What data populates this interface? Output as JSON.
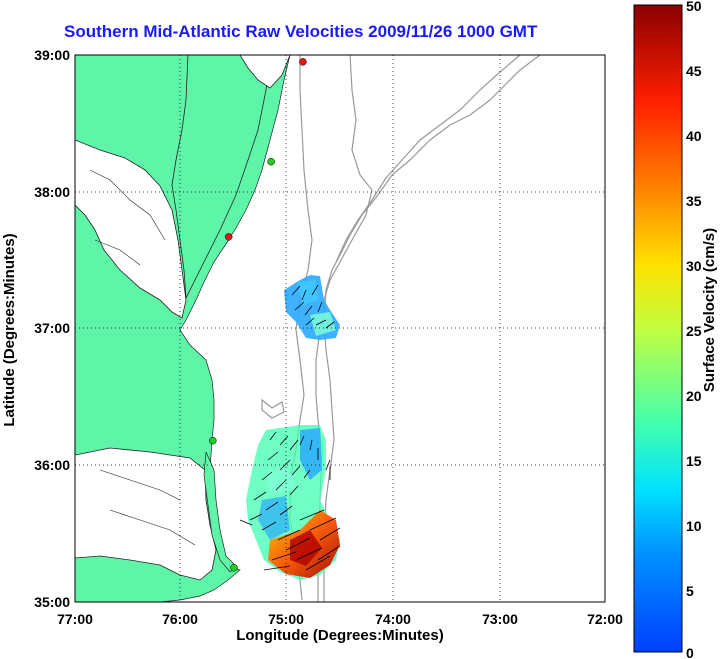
{
  "title": "Southern Mid-Atlantic Raw Velocities 2009/11/26 1000 GMT",
  "xaxis": {
    "label": "Longitude (Degrees:Minutes)",
    "ticks": [
      "77:00",
      "76:00",
      "75:00",
      "74:00",
      "73:00",
      "72:00"
    ]
  },
  "yaxis": {
    "label": "Latitude (Degrees:Minutes)",
    "ticks": [
      "39:00",
      "38:00",
      "37:00",
      "36:00",
      "35:00"
    ]
  },
  "colorbar": {
    "label": "Surface Velocity (cm/s)",
    "ticks": [
      "50",
      "45",
      "40",
      "35",
      "30",
      "25",
      "20",
      "15",
      "10",
      "5",
      "0"
    ],
    "min": 0,
    "max": 50
  },
  "colors": {
    "land": "#5ff5a8",
    "title": "#1a1aff",
    "grid": "#000000",
    "bathymetry": "#999999",
    "station_active": "#22cc22",
    "station_inactive": "#ee1111"
  },
  "stations": [
    {
      "lon": -74.85,
      "lat": 38.95,
      "status": "inactive"
    },
    {
      "lon": -75.15,
      "lat": 38.22,
      "status": "active"
    },
    {
      "lon": -75.55,
      "lat": 37.67,
      "status": "inactive"
    },
    {
      "lon": -75.7,
      "lat": 36.18,
      "status": "active"
    },
    {
      "lon": -75.5,
      "lat": 35.25,
      "status": "active"
    }
  ]
}
